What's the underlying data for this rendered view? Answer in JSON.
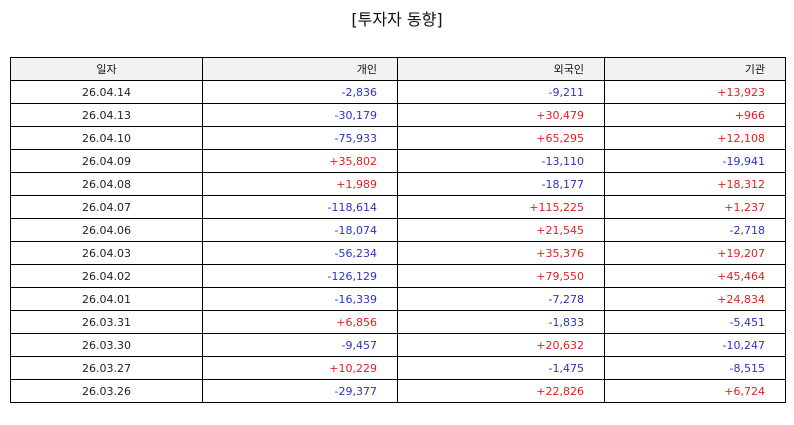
{
  "title": "[투자자 동향]",
  "columns": [
    "일자",
    "개인",
    "외국인",
    "기관"
  ],
  "colors": {
    "positive": "#e02020",
    "negative": "#2b35b8"
  },
  "rows": [
    [
      "26.04.14",
      "-2,836",
      "-9,211",
      "+13,923"
    ],
    [
      "26.04.13",
      "-30,179",
      "+30,479",
      "+966"
    ],
    [
      "26.04.10",
      "-75,933",
      "+65,295",
      "+12,108"
    ],
    [
      "26.04.09",
      "+35,802",
      "-13,110",
      "-19,941"
    ],
    [
      "26.04.08",
      "+1,989",
      "-18,177",
      "+18,312"
    ],
    [
      "26.04.07",
      "-118,614",
      "+115,225",
      "+1,237"
    ],
    [
      "26.04.06",
      "-18,074",
      "+21,545",
      "-2,718"
    ],
    [
      "26.04.03",
      "-56,234",
      "+35,376",
      "+19,207"
    ],
    [
      "26.04.02",
      "-126,129",
      "+79,550",
      "+45,464"
    ],
    [
      "26.04.01",
      "-16,339",
      "-7,278",
      "+24,834"
    ],
    [
      "26.03.31",
      "+6,856",
      "-1,833",
      "-5,451"
    ],
    [
      "26.03.30",
      "-9,457",
      "+20,632",
      "-10,247"
    ],
    [
      "26.03.27",
      "+10,229",
      "-1,475",
      "-8,515"
    ],
    [
      "26.03.26",
      "-29,377",
      "+22,826",
      "+6,724"
    ]
  ]
}
